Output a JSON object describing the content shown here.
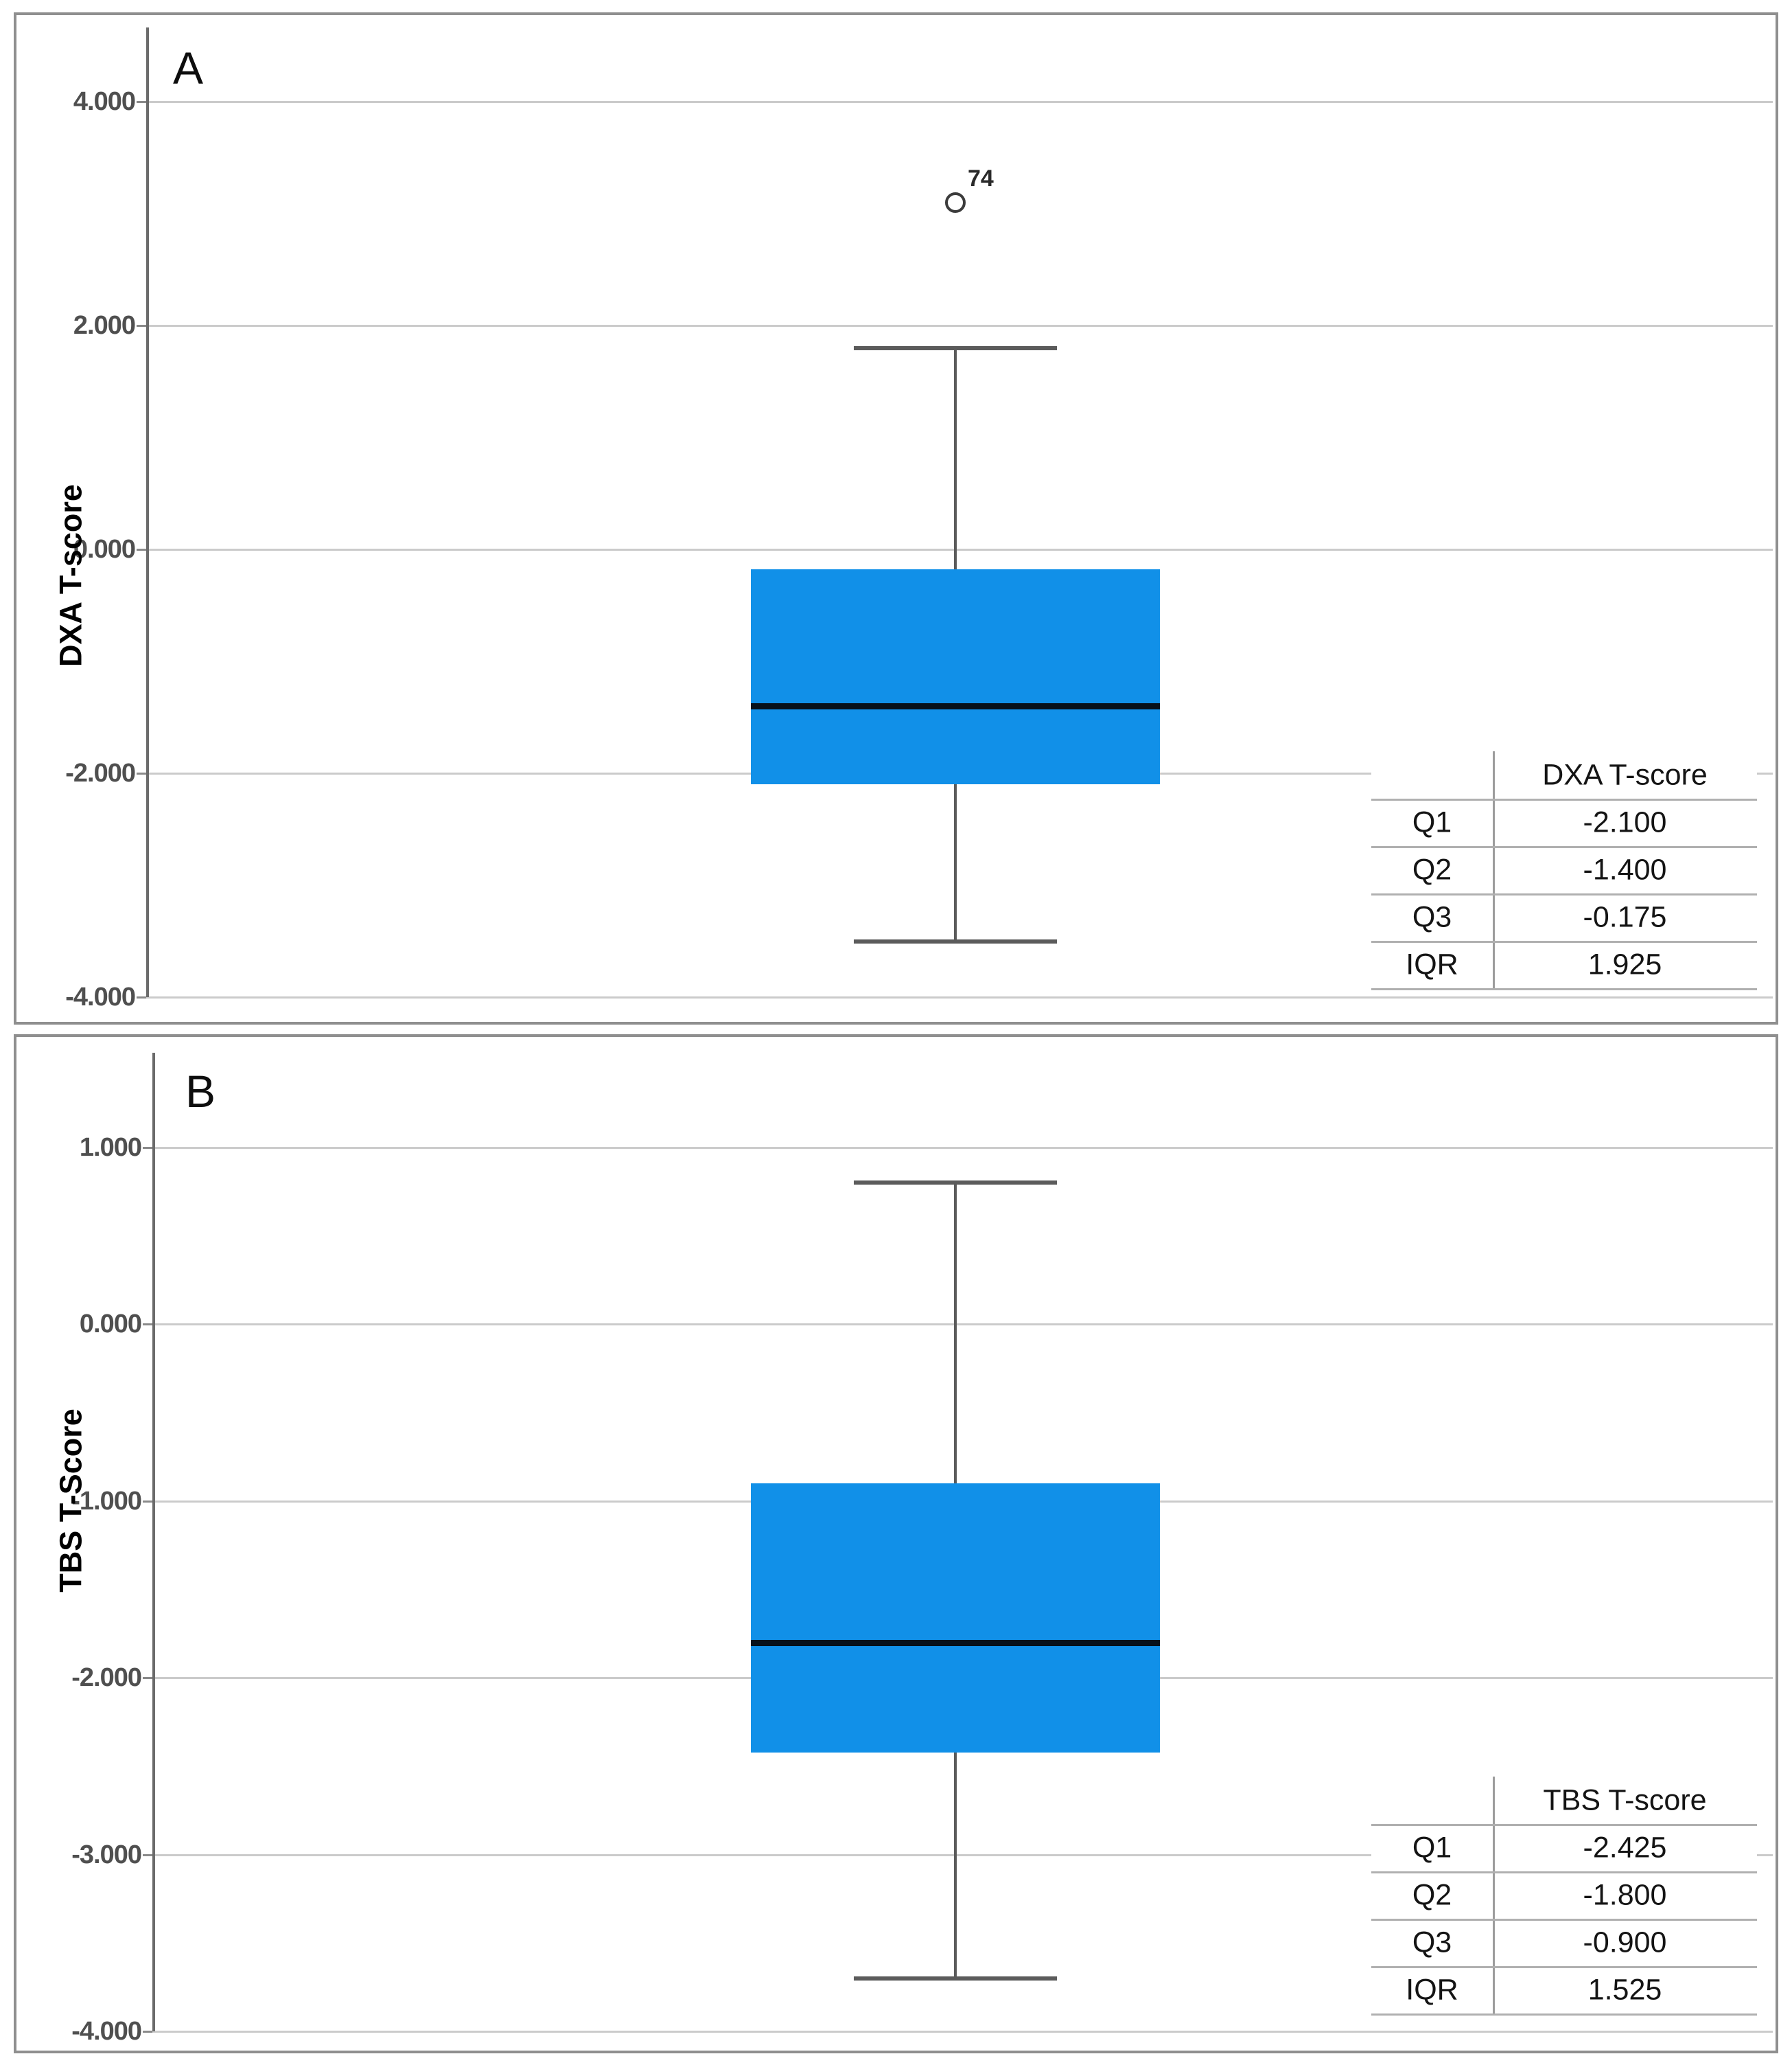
{
  "figure": {
    "background_color": "#ffffff",
    "panel_border_color": "#8f8f8f",
    "box_fill_color": "#1190e8",
    "median_color": "#07101a",
    "whisker_color": "#5b5b5b",
    "gridline_color": "#cbcbcb"
  },
  "chart_data": [
    {
      "type": "boxplot",
      "panel_label": "A",
      "ylabel": "DXA T-score",
      "yticks": [
        {
          "label": "4.000",
          "value": 4.0
        },
        {
          "label": "2.000",
          "value": 2.0
        },
        {
          "label": "0.000",
          "value": 0.0
        },
        {
          "label": "-2.000",
          "value": -2.0
        },
        {
          "label": "-4.000",
          "value": -4.0
        }
      ],
      "ylim": [
        -4.0,
        4.0
      ],
      "grid": true,
      "box": {
        "q1": -2.1,
        "median": -1.4,
        "q3": -0.175,
        "whisker_low": -3.5,
        "whisker_high": 1.8,
        "iqr": 1.925
      },
      "outliers": [
        {
          "value": 3.1,
          "label": "74"
        }
      ],
      "summary_table": {
        "header": "DXA T-score",
        "rows": [
          {
            "label": "Q1",
            "value": "-2.100"
          },
          {
            "label": "Q2",
            "value": "-1.400"
          },
          {
            "label": "Q3",
            "value": "-0.175"
          },
          {
            "label": "IQR",
            "value": "1.925"
          }
        ]
      }
    },
    {
      "type": "boxplot",
      "panel_label": "B",
      "ylabel": "TBS T-Score",
      "yticks": [
        {
          "label": "1.000",
          "value": 1.0
        },
        {
          "label": "0.000",
          "value": 0.0
        },
        {
          "label": "-1.000",
          "value": -1.0
        },
        {
          "label": "-2.000",
          "value": -2.0
        },
        {
          "label": "-3.000",
          "value": -3.0
        },
        {
          "label": "-4.000",
          "value": -4.0
        }
      ],
      "ylim": [
        -4.0,
        1.0
      ],
      "grid": true,
      "box": {
        "q1": -2.425,
        "median": -1.8,
        "q3": -0.9,
        "whisker_low": -3.7,
        "whisker_high": 0.8,
        "iqr": 1.525
      },
      "outliers": [],
      "summary_table": {
        "header": "TBS T-score",
        "rows": [
          {
            "label": "Q1",
            "value": "-2.425"
          },
          {
            "label": "Q2",
            "value": "-1.800"
          },
          {
            "label": "Q3",
            "value": "-0.900"
          },
          {
            "label": "IQR",
            "value": "1.525"
          }
        ]
      }
    }
  ]
}
